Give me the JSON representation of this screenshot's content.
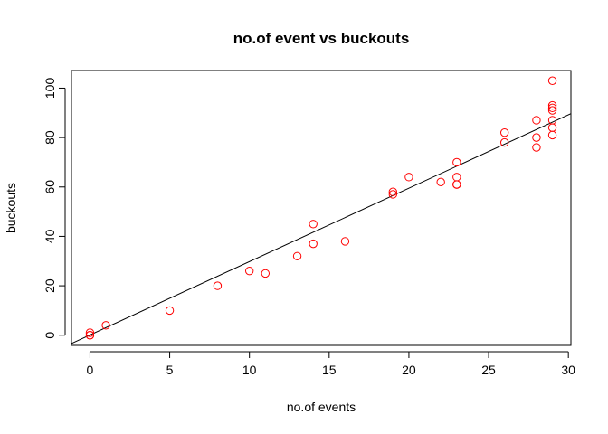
{
  "chart_data": {
    "type": "scatter",
    "title": "no.of event vs buckouts",
    "xlabel": "no.of events",
    "ylabel": "buckouts",
    "xlim": [
      -1.16,
      30.16
    ],
    "ylim": [
      -4.12,
      107.12
    ],
    "xticks": [
      0,
      5,
      10,
      15,
      20,
      25,
      30
    ],
    "yticks": [
      0,
      20,
      40,
      60,
      80,
      100
    ],
    "grid": false,
    "point_color": "#ff0000",
    "line_color": "#000000",
    "points": [
      {
        "x": 0,
        "y": 0
      },
      {
        "x": 0,
        "y": 0
      },
      {
        "x": 0,
        "y": 1
      },
      {
        "x": 1,
        "y": 4
      },
      {
        "x": 5,
        "y": 10
      },
      {
        "x": 8,
        "y": 20
      },
      {
        "x": 10,
        "y": 26
      },
      {
        "x": 11,
        "y": 25
      },
      {
        "x": 13,
        "y": 32
      },
      {
        "x": 14,
        "y": 37
      },
      {
        "x": 14,
        "y": 45
      },
      {
        "x": 16,
        "y": 38
      },
      {
        "x": 19,
        "y": 57
      },
      {
        "x": 19,
        "y": 58
      },
      {
        "x": 20,
        "y": 64
      },
      {
        "x": 22,
        "y": 62
      },
      {
        "x": 23,
        "y": 61
      },
      {
        "x": 23,
        "y": 61
      },
      {
        "x": 23,
        "y": 64
      },
      {
        "x": 23,
        "y": 70
      },
      {
        "x": 26,
        "y": 78
      },
      {
        "x": 26,
        "y": 82
      },
      {
        "x": 28,
        "y": 76
      },
      {
        "x": 28,
        "y": 80
      },
      {
        "x": 28,
        "y": 87
      },
      {
        "x": 29,
        "y": 81
      },
      {
        "x": 29,
        "y": 84
      },
      {
        "x": 29,
        "y": 87
      },
      {
        "x": 29,
        "y": 91
      },
      {
        "x": 29,
        "y": 92
      },
      {
        "x": 29,
        "y": 93
      },
      {
        "x": 29,
        "y": 103
      }
    ],
    "fit_line": {
      "intercept": 0.09,
      "slope": 2.97
    }
  }
}
